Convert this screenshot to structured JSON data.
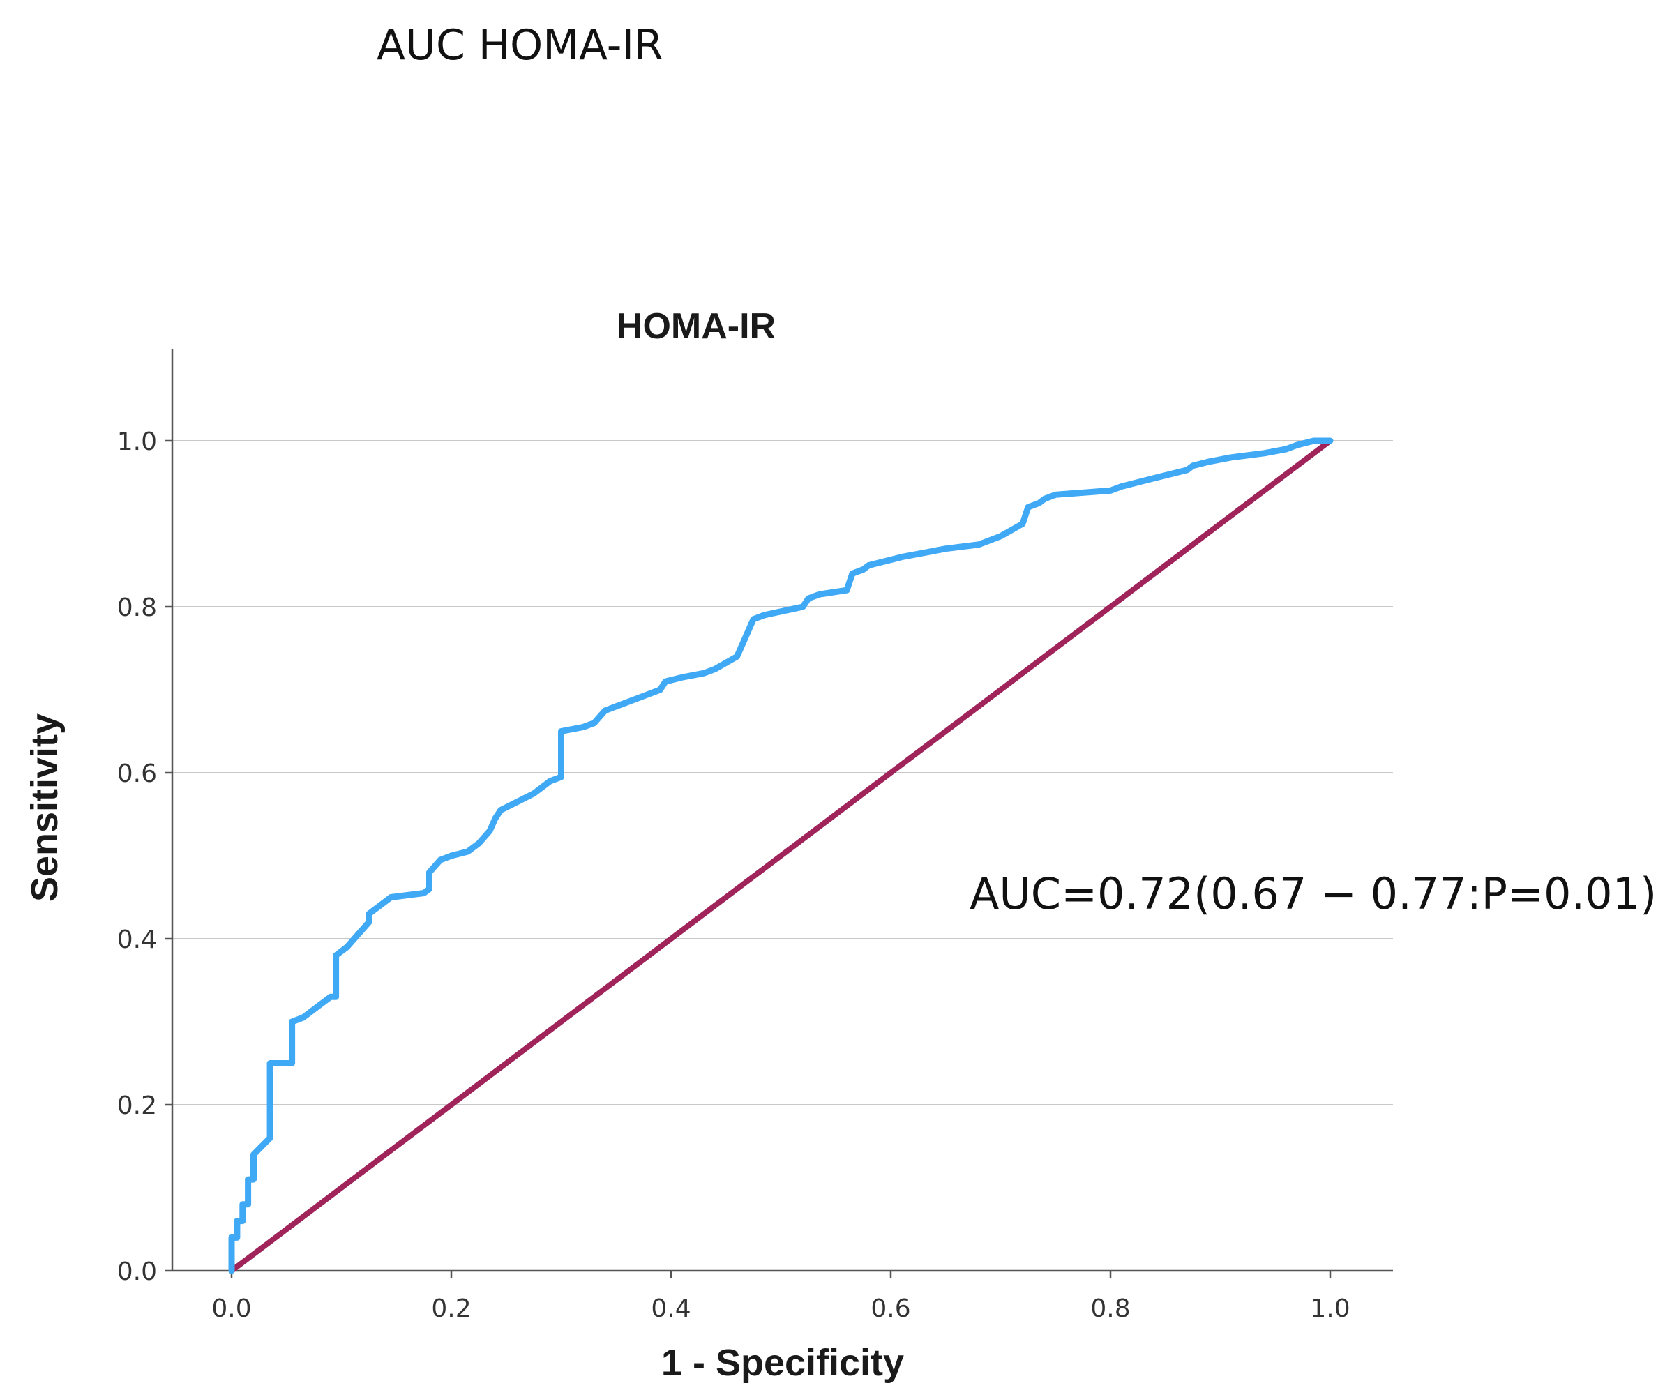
{
  "figure": {
    "header_title": "AUC HOMA-IR",
    "annotation": "AUC=0.72(0.67 − 0.77:P=0.01)"
  },
  "chart_data": {
    "type": "line",
    "title": "HOMA-IR",
    "xlabel": "1 - Specificity",
    "ylabel": "Sensitivity",
    "xlim": [
      0,
      1.05
    ],
    "ylim": [
      0,
      1.1
    ],
    "grid": "horizontal",
    "xticks": [
      0.0,
      0.2,
      0.4,
      0.6,
      0.8,
      1.0
    ],
    "xtick_labels": [
      "0.0",
      "0.2",
      "0.4",
      "0.6",
      "0.8",
      "1.0"
    ],
    "yticks": [
      0.0,
      0.2,
      0.4,
      0.6,
      0.8,
      1.0
    ],
    "ytick_labels": [
      "0.0",
      "0.2",
      "0.4",
      "0.6",
      "0.8",
      "1.0"
    ],
    "series": [
      {
        "color": "#3fa9f5",
        "step": true,
        "x": [
          0.0,
          0.0,
          0.005,
          0.005,
          0.01,
          0.01,
          0.015,
          0.015,
          0.02,
          0.02,
          0.035,
          0.035,
          0.055,
          0.055,
          0.065,
          0.07,
          0.08,
          0.085,
          0.09,
          0.095,
          0.095,
          0.105,
          0.115,
          0.125,
          0.125,
          0.135,
          0.145,
          0.175,
          0.18,
          0.18,
          0.19,
          0.2,
          0.215,
          0.225,
          0.235,
          0.24,
          0.245,
          0.26,
          0.275,
          0.29,
          0.3,
          0.3,
          0.32,
          0.33,
          0.34,
          0.35,
          0.37,
          0.39,
          0.395,
          0.41,
          0.43,
          0.44,
          0.46,
          0.47,
          0.475,
          0.485,
          0.52,
          0.525,
          0.535,
          0.56,
          0.565,
          0.575,
          0.58,
          0.595,
          0.61,
          0.63,
          0.65,
          0.68,
          0.69,
          0.7,
          0.72,
          0.725,
          0.735,
          0.74,
          0.75,
          0.8,
          0.81,
          0.84,
          0.87,
          0.875,
          0.89,
          0.91,
          0.94,
          0.96,
          0.97,
          0.985,
          1.0
        ],
        "y": [
          0.0,
          0.04,
          0.04,
          0.06,
          0.06,
          0.08,
          0.08,
          0.11,
          0.11,
          0.14,
          0.16,
          0.25,
          0.25,
          0.3,
          0.305,
          0.31,
          0.32,
          0.325,
          0.33,
          0.33,
          0.38,
          0.39,
          0.405,
          0.42,
          0.43,
          0.44,
          0.45,
          0.455,
          0.46,
          0.48,
          0.495,
          0.5,
          0.505,
          0.515,
          0.53,
          0.545,
          0.555,
          0.565,
          0.575,
          0.59,
          0.595,
          0.65,
          0.655,
          0.66,
          0.675,
          0.68,
          0.69,
          0.7,
          0.71,
          0.715,
          0.72,
          0.725,
          0.74,
          0.77,
          0.785,
          0.79,
          0.8,
          0.81,
          0.815,
          0.82,
          0.84,
          0.845,
          0.85,
          0.855,
          0.86,
          0.865,
          0.87,
          0.875,
          0.88,
          0.885,
          0.9,
          0.92,
          0.925,
          0.93,
          0.935,
          0.94,
          0.945,
          0.955,
          0.965,
          0.97,
          0.975,
          0.98,
          0.985,
          0.99,
          0.995,
          1.0,
          1.0
        ]
      },
      {
        "color": "#a0245a",
        "x": [
          0.0,
          1.0
        ],
        "y": [
          0.0,
          1.0
        ]
      }
    ]
  }
}
